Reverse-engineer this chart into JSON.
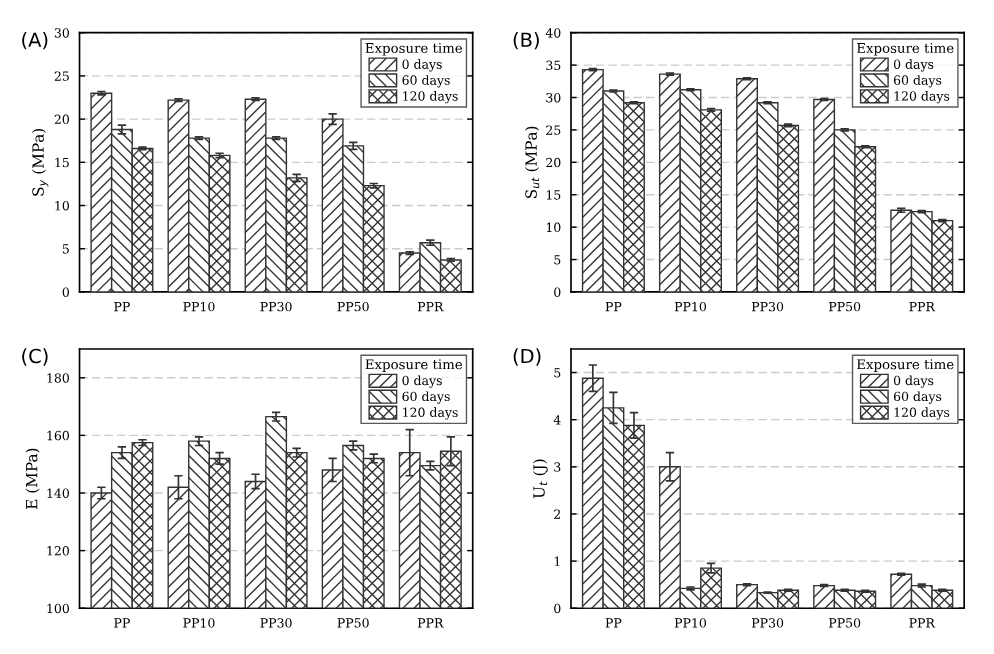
{
  "chart_data": [
    {
      "type": "bar",
      "title": "(A)",
      "ylabel": "S$_{y}$ (MPa)",
      "legend_title": "Exposure time",
      "legend": "top right",
      "grid": "y",
      "categories": [
        "PP",
        "PP10",
        "PP30",
        "PP50",
        "PPR"
      ],
      "ylim": [
        0,
        30
      ],
      "yticks": [
        0,
        5,
        10,
        15,
        20,
        25,
        30
      ],
      "series": [
        {
          "name": "0 days",
          "color": "#333333",
          "values": [
            23.0,
            22.2,
            22.3,
            20.0,
            4.5
          ],
          "errors": [
            0.2,
            0.15,
            0.15,
            0.6,
            0.15
          ]
        },
        {
          "name": "60 days",
          "color": "#333333",
          "values": [
            18.8,
            17.8,
            17.8,
            16.9,
            5.7
          ],
          "errors": [
            0.5,
            0.15,
            0.15,
            0.4,
            0.3
          ]
        },
        {
          "name": "120 days",
          "color": "#333333",
          "values": [
            16.6,
            15.8,
            13.2,
            12.3,
            3.7
          ],
          "errors": [
            0.15,
            0.25,
            0.4,
            0.25,
            0.15
          ]
        }
      ]
    },
    {
      "type": "bar",
      "title": "(B)",
      "ylabel": "S$_{ut}$ (MPa)",
      "legend_title": "Exposure time",
      "legend": "top right",
      "grid": "y",
      "categories": [
        "PP",
        "PP10",
        "PP30",
        "PP50",
        "PPR"
      ],
      "ylim": [
        0,
        40
      ],
      "yticks": [
        0,
        5,
        10,
        15,
        20,
        25,
        30,
        35,
        40
      ],
      "series": [
        {
          "name": "0 days",
          "color": "#333333",
          "values": [
            34.3,
            33.6,
            32.9,
            29.7,
            12.6
          ],
          "errors": [
            0.15,
            0.15,
            0.15,
            0.15,
            0.3
          ]
        },
        {
          "name": "60 days",
          "color": "#333333",
          "values": [
            31.0,
            31.2,
            29.2,
            25.0,
            12.4
          ],
          "errors": [
            0.15,
            0.15,
            0.15,
            0.15,
            0.15
          ]
        },
        {
          "name": "120 days",
          "color": "#333333",
          "values": [
            29.2,
            28.1,
            25.7,
            22.4,
            11.0
          ],
          "errors": [
            0.15,
            0.2,
            0.2,
            0.15,
            0.15
          ]
        }
      ]
    },
    {
      "type": "bar",
      "title": "(C)",
      "ylabel": "E (MPa)",
      "legend_title": "Exposure time",
      "legend": "top right",
      "grid": "y",
      "categories": [
        "PP",
        "PP10",
        "PP30",
        "PP50",
        "PPR"
      ],
      "ylim": [
        100,
        190
      ],
      "yticks": [
        100,
        120,
        140,
        160,
        180
      ],
      "series": [
        {
          "name": "0 days",
          "color": "#333333",
          "values": [
            140,
            142,
            144,
            148,
            154
          ],
          "errors": [
            2,
            4,
            2.5,
            4,
            8
          ]
        },
        {
          "name": "60 days",
          "color": "#333333",
          "values": [
            154,
            158,
            166.5,
            156.5,
            149.5
          ],
          "errors": [
            2,
            1.5,
            1.5,
            1.5,
            1.5
          ]
        },
        {
          "name": "120 days",
          "color": "#333333",
          "values": [
            157.5,
            152,
            154,
            152,
            154.5
          ],
          "errors": [
            1,
            2,
            1.5,
            1.5,
            5
          ]
        }
      ]
    },
    {
      "type": "bar",
      "title": "(D)",
      "ylabel": "U$_{t}$ (J)",
      "legend_title": "Exposure time",
      "legend": "top right",
      "grid": "y",
      "categories": [
        "PP",
        "PP10",
        "PP30",
        "PP50",
        "PPR"
      ],
      "ylim": [
        0,
        5.5
      ],
      "yticks": [
        0,
        1,
        2,
        3,
        4,
        5
      ],
      "series": [
        {
          "name": "0 days",
          "color": "#333333",
          "values": [
            4.88,
            3.0,
            0.5,
            0.48,
            0.72
          ],
          "errors": [
            0.28,
            0.3,
            0.02,
            0.02,
            0.02
          ]
        },
        {
          "name": "60 days",
          "color": "#333333",
          "values": [
            4.25,
            0.42,
            0.33,
            0.38,
            0.48
          ],
          "errors": [
            0.33,
            0.03,
            0.01,
            0.02,
            0.03
          ]
        },
        {
          "name": "120 days",
          "color": "#333333",
          "values": [
            3.88,
            0.85,
            0.38,
            0.36,
            0.38
          ],
          "errors": [
            0.27,
            0.1,
            0.02,
            0.02,
            0.02
          ]
        }
      ]
    }
  ]
}
